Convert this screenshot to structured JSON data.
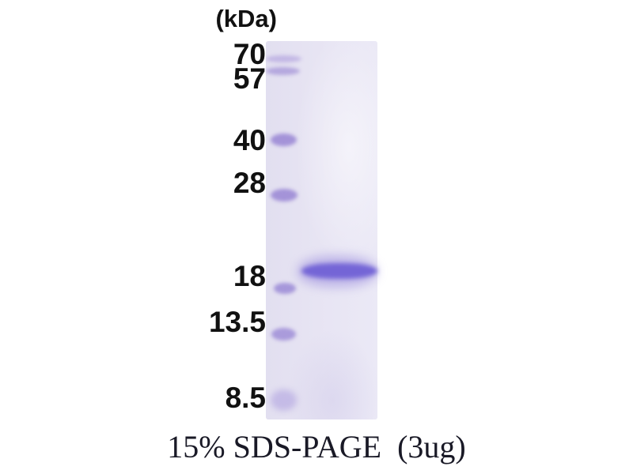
{
  "figure": {
    "unit_label": "(kDa)",
    "caption": "15% SDS-PAGE  (3ug)"
  },
  "gel": {
    "description": "Coomassie-stained SDS-PAGE gel with molecular weight ladder lane and one sample lane",
    "ladder": [
      {
        "label": "70",
        "kda": 70
      },
      {
        "label": "57",
        "kda": 57
      },
      {
        "label": "40",
        "kda": 40
      },
      {
        "label": "28",
        "kda": 28
      },
      {
        "label": "18",
        "kda": 18
      },
      {
        "label": "13.5",
        "kda": 13.5
      },
      {
        "label": "8.5",
        "kda": 8.5
      }
    ],
    "sample_band": {
      "apparent_kda": 18,
      "intensity": "strong"
    },
    "colors": {
      "page_background": "#ffffff",
      "gel_background": "#e7e4f3",
      "marker_band": "#9384d2",
      "sample_band": "#7465d6",
      "label_text": "#111111",
      "caption_text": "#191926"
    }
  }
}
